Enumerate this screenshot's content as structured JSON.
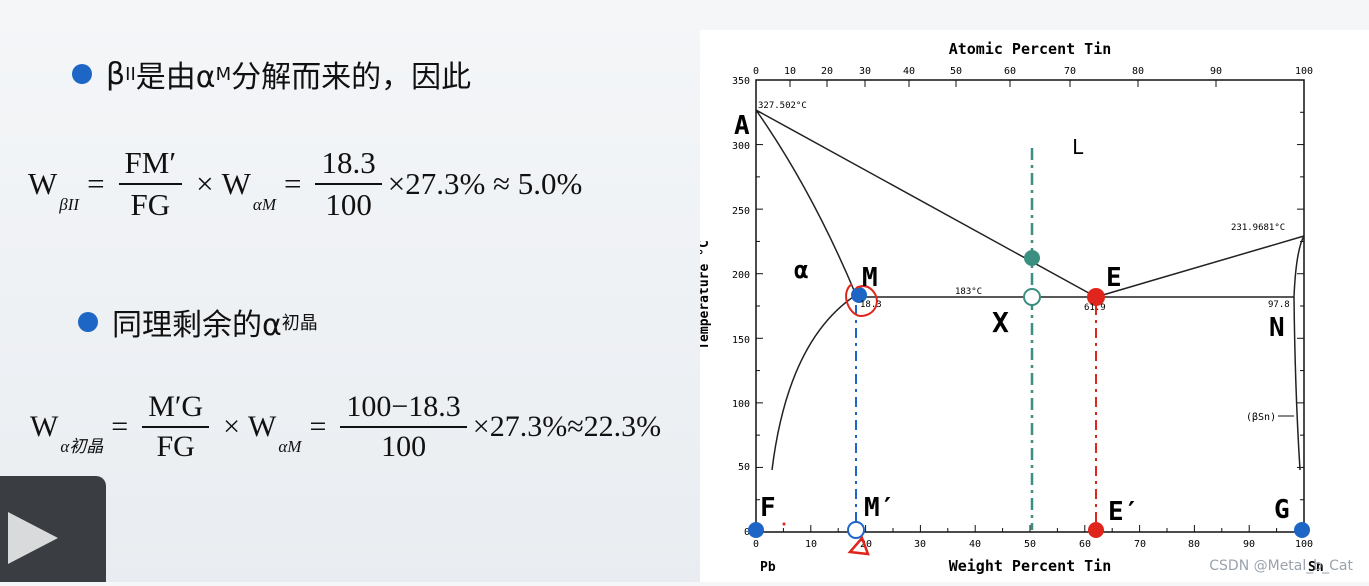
{
  "slide": {
    "bullet1": {
      "prefix": "β",
      "prefix_sub": "II",
      "middle": "是由α",
      "middle_sub": "M",
      "suffix": "分解而来的，因此"
    },
    "eq1": {
      "w_main": "W",
      "w_main_sub": "βII",
      "eq": "=",
      "num": "FM′",
      "den": "FG",
      "times": "×",
      "w2": "W",
      "w2_sub": "αM",
      "eq2": "=",
      "num2": "18.3",
      "den2": "100",
      "tail": "×27.3% ≈ 5.0%"
    },
    "bullet2": {
      "prefix": "同理剩余的α",
      "prefix_sub": "初晶"
    },
    "eq2": {
      "w_main": "W",
      "w_main_sub": "α初晶",
      "eq": "=",
      "num": "M′G",
      "den": "FG",
      "times": "×",
      "w2": "W",
      "w2_sub": "αM",
      "eq2": "=",
      "num2": "100−18.3",
      "den2": "100",
      "tail": "×27.3%≈22.3%"
    }
  },
  "diagram": {
    "top_axis_title": "Atomic Percent Tin",
    "top_ticks": [
      "0",
      "10",
      "20",
      "30",
      "40",
      "50",
      "60",
      "70",
      "80",
      "90",
      "100"
    ],
    "bottom_axis_title": "Weight Percent Tin",
    "bottom_ticks": [
      "0",
      "10",
      "20",
      "30",
      "40",
      "50",
      "60",
      "70",
      "80",
      "90",
      "100"
    ],
    "y_axis_title": "Temperature °C",
    "y_ticks": [
      "0",
      "50",
      "100",
      "150",
      "200",
      "250",
      "300",
      "350"
    ],
    "pb": "Pb",
    "sn": "Sn",
    "labels": {
      "A": "A",
      "L": "L",
      "alpha": "α",
      "M": "M",
      "E": "E",
      "X": "X",
      "N": "N",
      "F": "F",
      "Mprime": "M′",
      "Eprime": "E′",
      "G": "G"
    },
    "annotations": {
      "pb_melt": "327.502°C",
      "sn_melt": "231.9681°C",
      "eutectic_temp": "183°C",
      "m_comp": "18.3",
      "e_comp": "61.9",
      "n_comp": "97.8",
      "beta_sn": "(βSn)"
    },
    "colors": {
      "blue": "#1e66c6",
      "teal": "#3b8f80",
      "red": "#e0261c"
    }
  },
  "watermark": "CSDN @Metal_b_Cat"
}
